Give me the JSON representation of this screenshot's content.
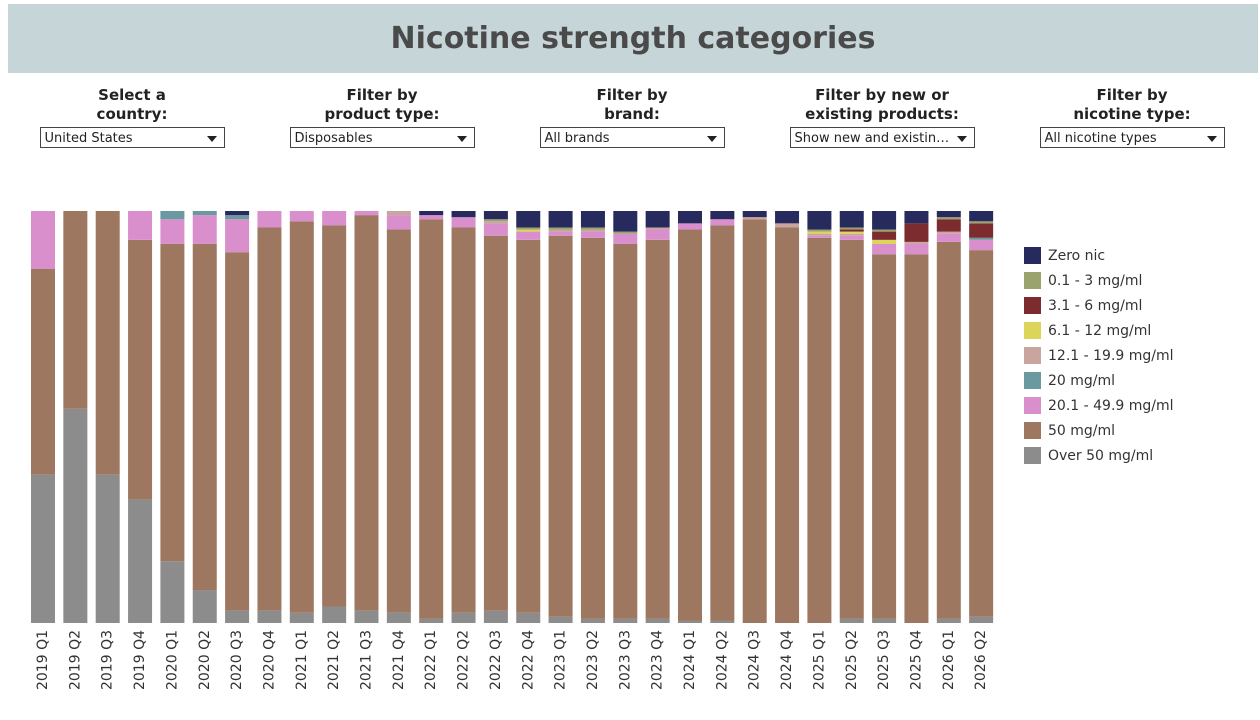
{
  "header": {
    "title": "Nicotine strength categories"
  },
  "filters": [
    {
      "label": "Select a\ncountry:",
      "value": "United States"
    },
    {
      "label": "Filter by\nproduct type:",
      "value": "Disposables"
    },
    {
      "label": "Filter by\nbrand:",
      "value": "All brands"
    },
    {
      "label": "Filter by new or\nexisting products:",
      "value": "Show new and existin…"
    },
    {
      "label": "Filter by\nnicotine type:",
      "value": "All nicotine types"
    }
  ],
  "chart_data": {
    "type": "stacked_bar",
    "categories": [
      "2019 Q1",
      "2019 Q2",
      "2019 Q3",
      "2019 Q4",
      "2020 Q1",
      "2020 Q2",
      "2020 Q3",
      "2020 Q4",
      "2021 Q1",
      "2021 Q2",
      "2021 Q3",
      "2021 Q4",
      "2022 Q1",
      "2022 Q2",
      "2022 Q3",
      "2022 Q4",
      "2023 Q1",
      "2023 Q2",
      "2023 Q3",
      "2023 Q4",
      "2024 Q1",
      "2024 Q2",
      "2024 Q3",
      "2024 Q4",
      "2025 Q1",
      "2025 Q2",
      "2025 Q3",
      "2025 Q4",
      "2026 Q1",
      "2026 Q2"
    ],
    "ylim": [
      0,
      100
    ],
    "series": [
      {
        "name": "Zero nic",
        "color": "#262a5c",
        "values": [
          0,
          0,
          0,
          0,
          0,
          0,
          1,
          0,
          0,
          0,
          0,
          0,
          1,
          1.5,
          2,
          4,
          4,
          4,
          5,
          4,
          3,
          2,
          1.5,
          3,
          4.5,
          4,
          4.5,
          3,
          1.5,
          2.5
        ]
      },
      {
        "name": "0.1 - 3 mg/ml",
        "color": "#9aa36e",
        "values": [
          0,
          0,
          0,
          0,
          0,
          0,
          0,
          0,
          0,
          0,
          0,
          0,
          0,
          0,
          0.5,
          0.5,
          0.5,
          0.5,
          0.5,
          0,
          0,
          0,
          0,
          0,
          0.5,
          0.5,
          0.5,
          0,
          0.5,
          0.5
        ]
      },
      {
        "name": "3.1 - 6 mg/ml",
        "color": "#7c2b2f",
        "values": [
          0,
          0,
          0,
          0,
          0,
          0,
          0,
          0,
          0,
          0,
          0,
          0,
          0,
          0,
          0,
          0,
          0,
          0,
          0,
          0,
          0,
          0,
          0,
          0,
          0,
          0.5,
          2,
          4.5,
          3,
          3.5
        ]
      },
      {
        "name": "6.1 - 12 mg/ml",
        "color": "#ddd45a",
        "values": [
          0,
          0,
          0,
          0,
          0,
          0,
          0,
          0,
          0,
          0,
          0,
          0,
          0,
          0,
          0,
          0.5,
          0,
          0,
          0,
          0,
          0,
          0,
          0,
          0,
          0.5,
          0.5,
          1,
          0,
          0,
          0
        ]
      },
      {
        "name": "12.1 - 19.9 mg/ml",
        "color": "#c9a5a0",
        "values": [
          0,
          0,
          0,
          0,
          0,
          0,
          0,
          0,
          0,
          0,
          0,
          1,
          0,
          0,
          0.5,
          0,
          0.5,
          0.5,
          0,
          0.5,
          0,
          0,
          0.5,
          1,
          0.5,
          0.5,
          0,
          0.5,
          0.5,
          0
        ]
      },
      {
        "name": "20 mg/ml",
        "color": "#6a9aa0",
        "values": [
          0,
          0,
          0,
          0,
          2,
          1,
          1,
          0,
          0,
          0,
          0,
          0,
          0,
          0,
          0,
          0,
          0,
          0,
          0,
          0,
          0,
          0,
          0,
          0,
          0,
          0,
          0,
          0,
          0,
          0.5
        ]
      },
      {
        "name": "20.1 - 49.9 mg/ml",
        "color": "#d88fcc",
        "values": [
          14,
          0,
          0,
          7,
          6,
          7,
          8,
          4,
          2.5,
          3.5,
          1,
          3.5,
          1,
          2.5,
          3,
          2,
          1,
          1.5,
          2.5,
          2.5,
          1.5,
          1.5,
          0,
          0,
          0.5,
          1,
          2.5,
          2.5,
          2,
          2.5
        ]
      },
      {
        "name": "50 mg/ml",
        "color": "#9e7760",
        "values": [
          50,
          48,
          64,
          63,
          77,
          84,
          87,
          93,
          95,
          92.5,
          96,
          93,
          97,
          93.5,
          91,
          90.5,
          92.5,
          92.5,
          91,
          92,
          95,
          96,
          98,
          96,
          93.5,
          92,
          88.5,
          89.5,
          91.5,
          89
        ]
      },
      {
        "name": "Over 50 mg/ml",
        "color": "#8c8c8c",
        "values": [
          36,
          52,
          36,
          30,
          15,
          8,
          3,
          3,
          2.5,
          4,
          3,
          2.5,
          1,
          2.5,
          3,
          2.5,
          1.5,
          1,
          1,
          1,
          0.5,
          0.5,
          0,
          0,
          0,
          1,
          1,
          0,
          1,
          1.5
        ]
      }
    ]
  }
}
